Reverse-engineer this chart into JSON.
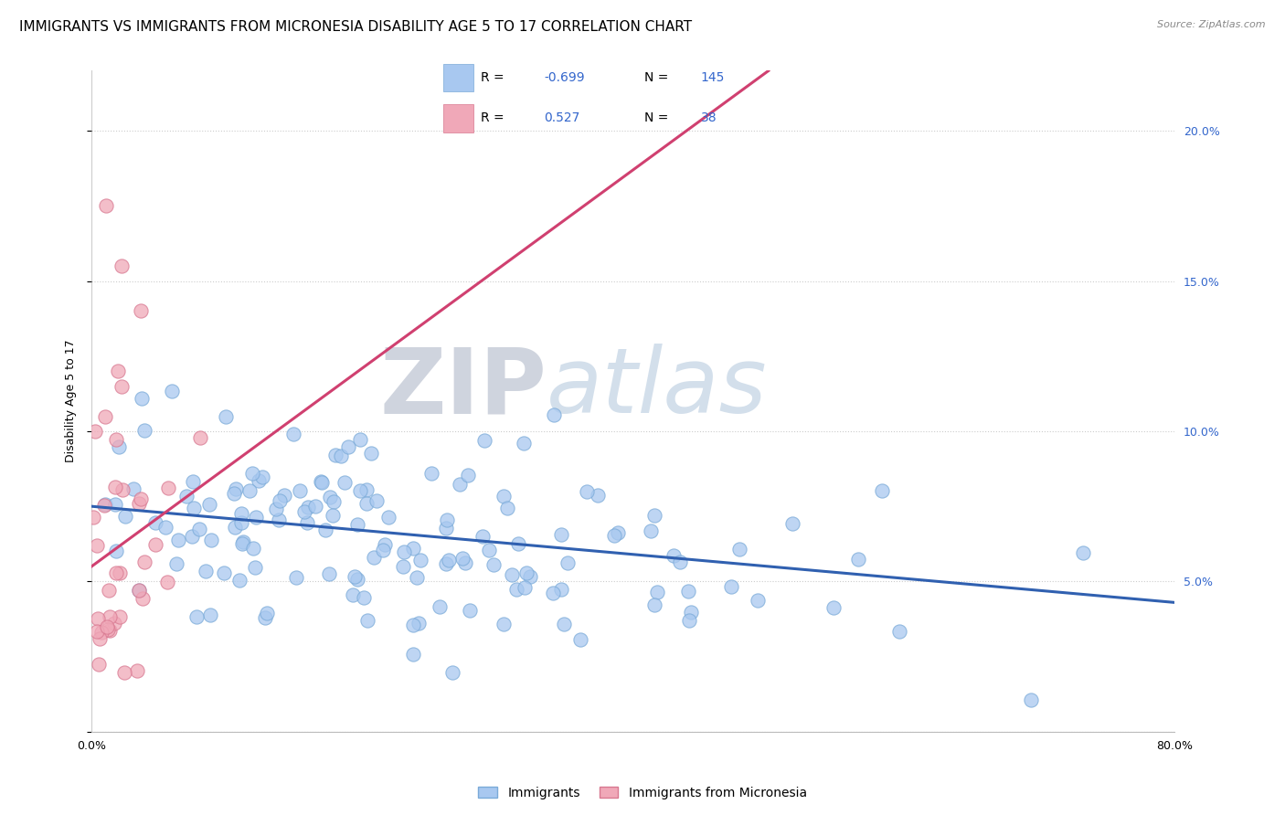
{
  "title": "IMMIGRANTS VS IMMIGRANTS FROM MICRONESIA DISABILITY AGE 5 TO 17 CORRELATION CHART",
  "source": "Source: ZipAtlas.com",
  "ylabel": "Disability Age 5 to 17",
  "xlim": [
    0.0,
    0.8
  ],
  "ylim": [
    0.0,
    0.22
  ],
  "x_ticks": [
    0.0,
    0.1,
    0.2,
    0.3,
    0.4,
    0.5,
    0.6,
    0.7,
    0.8
  ],
  "x_tick_labels": [
    "0.0%",
    "",
    "",
    "",
    "",
    "",
    "",
    "",
    "80.0%"
  ],
  "y_ticks_right": [
    0.0,
    0.05,
    0.1,
    0.15,
    0.2
  ],
  "y_tick_labels_right": [
    "",
    "5.0%",
    "10.0%",
    "15.0%",
    "20.0%"
  ],
  "blue_color": "#a8c8f0",
  "blue_edge_color": "#7aaad8",
  "pink_color": "#f0a8b8",
  "pink_edge_color": "#d87890",
  "blue_line_color": "#3060b0",
  "pink_line_color": "#d04070",
  "legend_R1": "-0.699",
  "legend_N1": "145",
  "legend_R2": "0.527",
  "legend_N2": "38",
  "legend_label1": "Immigrants",
  "legend_label2": "Immigrants from Micronesia",
  "watermark_zip": "ZIP",
  "watermark_atlas": "atlas",
  "title_fontsize": 11,
  "axis_label_fontsize": 9,
  "tick_fontsize": 9,
  "blue_intercept": 0.075,
  "blue_slope": -0.04,
  "pink_intercept": 0.04,
  "pink_slope": 0.38,
  "figsize": [
    14.06,
    8.92
  ],
  "dpi": 100
}
